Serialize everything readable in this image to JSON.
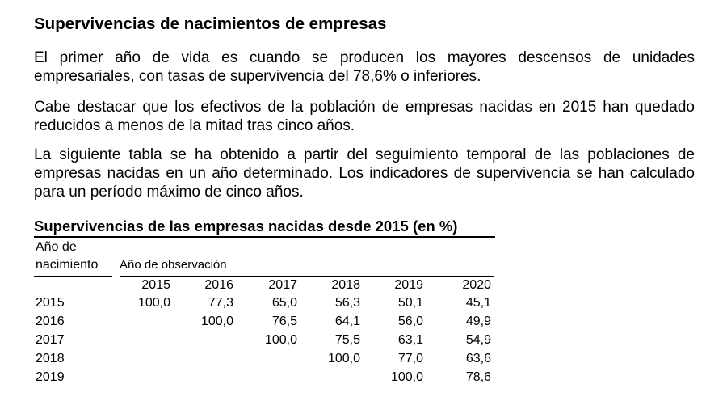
{
  "heading": "Supervivencias de nacimientos de empresas",
  "paragraphs": [
    "El primer año de vida es cuando se producen los mayores descensos de unidades empresariales, con tasas de supervivencia del 78,6% o inferiores.",
    "Cabe destacar que los efectivos de la población de empresas nacidas en 2015 han quedado reducidos a menos de la mitad tras cinco años.",
    "La siguiente tabla se ha obtenido a partir del seguimiento temporal de las poblaciones de empresas nacidas en un año determinado. Los indicadores de supervivencia se han calculado para un período máximo de cinco años."
  ],
  "table": {
    "title": "Supervivencias de las empresas nacidas desde 2015 (en %)",
    "row_header_line1": "Año de",
    "row_header_line2": "nacimiento",
    "column_group_label": "Año de observación",
    "columns": [
      "2015",
      "2016",
      "2017",
      "2018",
      "2019",
      "2020"
    ],
    "rows": [
      {
        "year": "2015",
        "values": [
          "100,0",
          "77,3",
          "65,0",
          "56,3",
          "50,1",
          "45,1"
        ]
      },
      {
        "year": "2016",
        "values": [
          "",
          "100,0",
          "76,5",
          "64,1",
          "56,0",
          "49,9"
        ]
      },
      {
        "year": "2017",
        "values": [
          "",
          "",
          "100,0",
          "75,5",
          "63,1",
          "54,9"
        ]
      },
      {
        "year": "2018",
        "values": [
          "",
          "",
          "",
          "100,0",
          "77,0",
          "63,6"
        ]
      },
      {
        "year": "2019",
        "values": [
          "",
          "",
          "",
          "",
          "100,0",
          "78,6"
        ]
      }
    ]
  },
  "chart_data": {
    "type": "table",
    "title": "Supervivencias de las empresas nacidas desde 2015 (en %)",
    "columns": [
      "2015",
      "2016",
      "2017",
      "2018",
      "2019",
      "2020"
    ],
    "rows": [
      {
        "year": "2015",
        "values": [
          100.0,
          77.3,
          65.0,
          56.3,
          50.1,
          45.1
        ]
      },
      {
        "year": "2016",
        "values": [
          null,
          100.0,
          76.5,
          64.1,
          56.0,
          49.9
        ]
      },
      {
        "year": "2017",
        "values": [
          null,
          null,
          100.0,
          75.5,
          63.1,
          54.9
        ]
      },
      {
        "year": "2018",
        "values": [
          null,
          null,
          null,
          100.0,
          77.0,
          63.6
        ]
      },
      {
        "year": "2019",
        "values": [
          null,
          null,
          null,
          null,
          100.0,
          78.6
        ]
      }
    ]
  }
}
